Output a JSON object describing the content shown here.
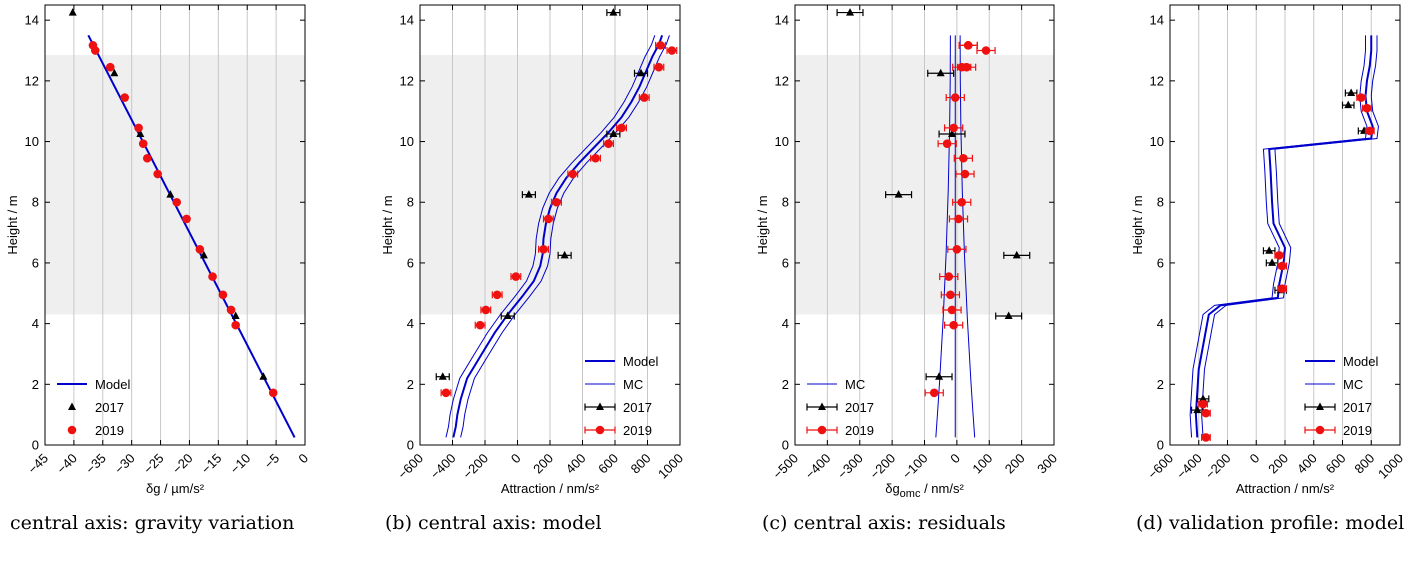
{
  "captions": [
    "central axis: gravity variation",
    "(b) central axis: model",
    "(c) central axis: residuals",
    "(d) validation profile: model"
  ],
  "colors": {
    "model": "#0000cc",
    "data2017": "#000000",
    "data2019": "#ee1111",
    "band": "#efefef",
    "grid": "#c8c8c8"
  },
  "chart_data": [
    {
      "type": "scatter",
      "xlabel": "δg / µm/s²",
      "ylabel": "Height / m",
      "xlim": [
        -45,
        0
      ],
      "ylim": [
        0,
        14.5
      ],
      "xticks": [
        -45,
        -40,
        -35,
        -30,
        -25,
        -20,
        -15,
        -10,
        -5,
        0
      ],
      "yticks": [
        0,
        2,
        4,
        6,
        8,
        10,
        12,
        14
      ],
      "shaded_band": [
        4.3,
        12.85
      ],
      "legend": [
        "Model",
        "2017",
        "2019"
      ],
      "legend_position": "bottom-left",
      "model": {
        "x": [
          -37.5,
          -1.8
        ],
        "y": [
          13.5,
          0.25
        ]
      },
      "series": [
        {
          "name": "2017",
          "x": [
            -40.2,
            -33.0,
            -28.5,
            -23.3,
            -17.5,
            -12.0,
            -7.2
          ],
          "y": [
            14.25,
            12.25,
            10.25,
            8.25,
            6.25,
            4.25,
            2.25
          ]
        },
        {
          "name": "2019",
          "x": [
            -36.7,
            -36.3,
            -33.7,
            -31.2,
            -28.8,
            -28.0,
            -27.3,
            -25.5,
            -22.2,
            -20.5,
            -18.2,
            -16.0,
            -14.2,
            -12.8,
            -12.0,
            -5.5
          ],
          "y": [
            13.17,
            13.0,
            12.45,
            11.45,
            10.45,
            9.93,
            9.45,
            8.93,
            8.0,
            7.45,
            6.45,
            5.55,
            4.95,
            4.45,
            3.95,
            1.72
          ]
        }
      ]
    },
    {
      "type": "scatter",
      "xlabel": "Attraction / nm/s²",
      "ylabel": "Height / m",
      "xlim": [
        -600,
        1000
      ],
      "ylim": [
        0,
        14.5
      ],
      "xticks": [
        -600,
        -400,
        -200,
        0,
        200,
        400,
        600,
        800,
        1000
      ],
      "yticks": [
        0,
        2,
        4,
        6,
        8,
        10,
        12,
        14
      ],
      "shaded_band": [
        4.3,
        12.85
      ],
      "legend": [
        "Model",
        "MC",
        "2017",
        "2019"
      ],
      "legend_position": "bottom-right",
      "model": {
        "x": [
          -395,
          -380,
          -370,
          -350,
          -310,
          -220,
          -140,
          -60,
          30,
          100,
          140,
          155,
          160,
          175,
          200,
          240,
          300,
          380,
          470,
          560,
          640,
          700,
          750,
          790,
          830,
          870,
          890
        ],
        "y": [
          0.25,
          0.6,
          1.0,
          1.5,
          2.2,
          3.0,
          3.7,
          4.3,
          4.9,
          5.4,
          5.9,
          6.3,
          6.8,
          7.3,
          7.8,
          8.3,
          8.8,
          9.3,
          9.8,
          10.3,
          10.8,
          11.3,
          11.8,
          12.3,
          12.8,
          13.2,
          13.5
        ]
      },
      "mc_offsets": [
        -45,
        45
      ],
      "series": [
        {
          "name": "2017",
          "x": [
            -460,
            -60,
            70,
            590,
            290,
            760,
            590
          ],
          "y": [
            2.25,
            4.25,
            8.25,
            14.25,
            6.25,
            12.25,
            10.25
          ],
          "xerr": 40
        },
        {
          "name": "2019",
          "x": [
            -440,
            -230,
            -195,
            -125,
            -10,
            160,
            190,
            240,
            340,
            480,
            560,
            640,
            780,
            870,
            880,
            950
          ],
          "y": [
            1.72,
            3.95,
            4.45,
            4.95,
            5.55,
            6.45,
            7.45,
            8.0,
            8.93,
            9.45,
            9.93,
            10.45,
            11.45,
            12.45,
            13.17,
            13.0
          ],
          "xerr": 30
        }
      ]
    },
    {
      "type": "scatter",
      "xlabel": "δg",
      "xlabel_sub": "omc",
      "xlabel_unit": " / nm/s²",
      "ylabel": "Height / m",
      "xlim": [
        -500,
        300
      ],
      "ylim": [
        0,
        14.5
      ],
      "xticks": [
        -500,
        -400,
        -300,
        -200,
        -100,
        0,
        100,
        200,
        300
      ],
      "yticks": [
        0,
        2,
        4,
        6,
        8,
        10,
        12,
        14
      ],
      "shaded_band": [
        4.3,
        12.85
      ],
      "legend": [
        "MC",
        "2017",
        "2019"
      ],
      "legend_position": "bottom-left",
      "mc_center": [
        [
          -5,
          13.5
        ],
        [
          -5,
          0.25
        ]
      ],
      "mc_spread": {
        "top": 15,
        "bottom": 60
      },
      "series": [
        {
          "name": "2017",
          "x": [
            -330,
            -50,
            -180,
            -15,
            185,
            160,
            -55
          ],
          "y": [
            14.25,
            12.25,
            8.25,
            10.25,
            6.25,
            4.25,
            2.25
          ],
          "xerr": 40
        },
        {
          "name": "2019",
          "x": [
            -70,
            -10,
            -15,
            -20,
            -25,
            0,
            5,
            15,
            25,
            20,
            -30,
            -10,
            -5,
            15,
            35,
            35,
            90,
            30
          ],
          "y": [
            1.72,
            3.95,
            4.45,
            4.95,
            5.55,
            6.45,
            7.45,
            8.0,
            8.93,
            9.45,
            9.93,
            10.45,
            11.45,
            12.45,
            13.17,
            13.17,
            13.0,
            12.45
          ],
          "xerr": 28
        }
      ]
    },
    {
      "type": "scatter",
      "xlabel": "Attraction / nm/s²",
      "ylabel": "Height / m",
      "xlim": [
        -600,
        1000
      ],
      "ylim": [
        0,
        14.5
      ],
      "xticks": [
        -600,
        -400,
        -200,
        0,
        200,
        400,
        600,
        800,
        1000
      ],
      "yticks": [
        0,
        2,
        4,
        6,
        8,
        10,
        12,
        14
      ],
      "legend": [
        "Model",
        "MC",
        "2017",
        "2019"
      ],
      "legend_position": "bottom-right",
      "model": {
        "x": [
          -410,
          -420,
          -400,
          -330,
          -250,
          150,
          160,
          190,
          200,
          120,
          110,
          100,
          90,
          800,
          810,
          770,
          760,
          770,
          790,
          800,
          800
        ],
        "y": [
          0.25,
          1.0,
          2.5,
          4.3,
          4.6,
          4.85,
          5.3,
          6.0,
          6.5,
          7.3,
          8.0,
          9.0,
          9.75,
          10.1,
          10.5,
          11.0,
          11.5,
          12.0,
          12.5,
          13.0,
          13.5
        ]
      },
      "mc_offsets": [
        -40,
        40
      ],
      "series": [
        {
          "name": "2017",
          "x": [
            -410,
            -370,
            170,
            110,
            90,
            750,
            640,
            660
          ],
          "y": [
            1.15,
            1.52,
            5.1,
            6.0,
            6.4,
            10.35,
            11.2,
            11.6
          ],
          "xerr": 40
        },
        {
          "name": "2019",
          "x": [
            -350,
            -370,
            -350,
            180,
            180,
            160,
            790,
            770,
            730
          ],
          "y": [
            0.25,
            1.35,
            1.05,
            5.15,
            5.9,
            6.25,
            10.35,
            11.1,
            11.45
          ],
          "xerr": 30
        }
      ]
    }
  ]
}
